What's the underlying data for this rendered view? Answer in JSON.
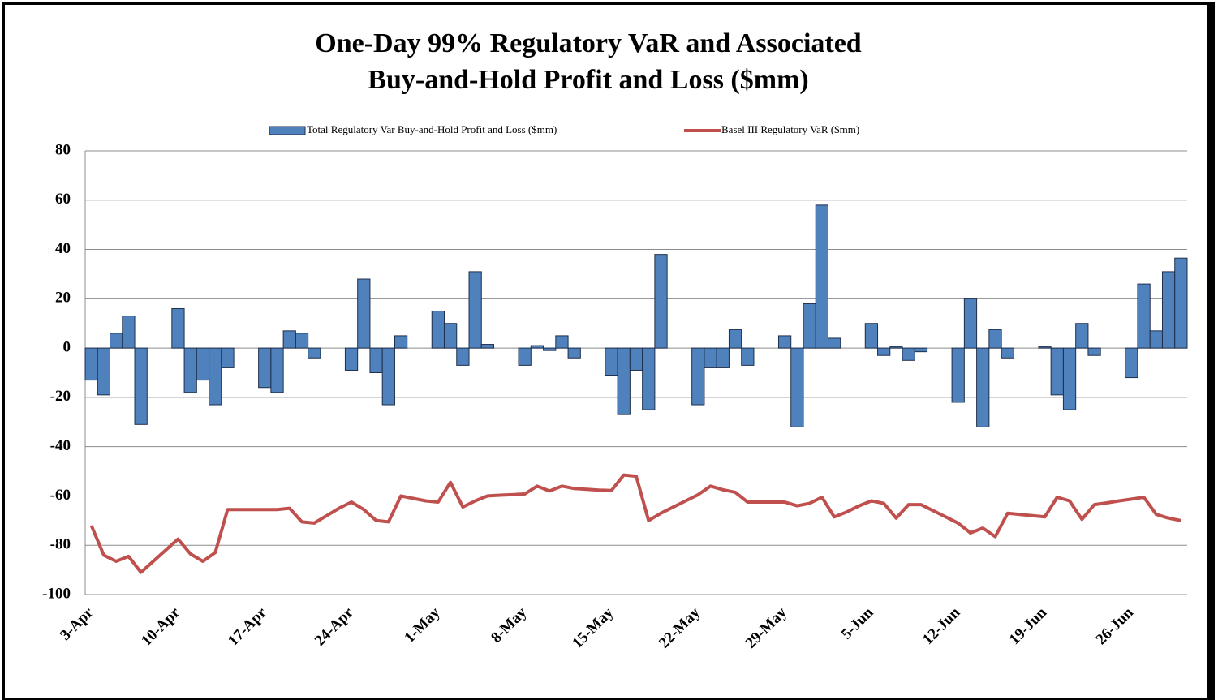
{
  "chart_data": {
    "type": "bar_line",
    "title": [
      "One-Day 99% Regulatory VaR and Associated",
      "Buy-and-Hold Profit and Loss ($mm)"
    ],
    "categories": [
      "3-Apr",
      null,
      null,
      null,
      null,
      null,
      null,
      "10-Apr",
      null,
      null,
      null,
      null,
      null,
      null,
      "17-Apr",
      null,
      null,
      null,
      null,
      null,
      null,
      "24-Apr",
      null,
      null,
      null,
      null,
      null,
      null,
      "1-May",
      null,
      null,
      null,
      null,
      null,
      null,
      "8-May",
      null,
      null,
      null,
      null,
      null,
      null,
      "15-May",
      null,
      null,
      null,
      null,
      null,
      null,
      "22-May",
      null,
      null,
      null,
      null,
      null,
      null,
      "29-May",
      null,
      null,
      null,
      null,
      null,
      null,
      "5-Jun",
      null,
      null,
      null,
      null,
      null,
      null,
      "12-Jun",
      null,
      null,
      null,
      null,
      null,
      null,
      "19-Jun",
      null,
      null,
      null,
      null,
      null,
      null,
      "26-Jun",
      null,
      null,
      null,
      null
    ],
    "series": [
      {
        "name": "Total Regulatory Var Buy-and-Hold Profit and Loss ($mm)",
        "type": "bar",
        "color": "#4f81bd",
        "values": [
          -13,
          -19,
          6,
          13,
          -31,
          null,
          null,
          16,
          -18,
          -13,
          -23,
          -8,
          null,
          null,
          -16,
          -18,
          7,
          6,
          -4,
          null,
          null,
          -9,
          28,
          -10,
          -23,
          5,
          null,
          null,
          15,
          10,
          -7,
          31,
          1.5,
          null,
          null,
          -7,
          1,
          -1,
          5,
          -4,
          null,
          null,
          -11,
          -27,
          -9,
          -25,
          38,
          null,
          null,
          -23,
          -8,
          -8,
          7.5,
          -7,
          null,
          null,
          5,
          -32,
          18,
          58,
          4,
          null,
          null,
          10,
          -3,
          0.5,
          -5,
          -1.5,
          null,
          null,
          -22,
          20,
          -32,
          7.5,
          -4,
          null,
          null,
          0.5,
          -19,
          -25,
          10,
          -3,
          null,
          null,
          -12,
          26,
          7,
          31,
          36.5
        ]
      },
      {
        "name": "Basel III Regulatory VaR ($mm)",
        "type": "line",
        "color": "#c0504d",
        "values": [
          -72,
          -84,
          -86.5,
          -84.5,
          -91,
          -86.5,
          -82,
          -77.5,
          -83.5,
          -86.5,
          -83,
          -65.5,
          -65.5,
          -65.5,
          -65.5,
          -65.5,
          -65,
          -70.5,
          -71,
          -68,
          -65,
          -62.5,
          -65.5,
          -70,
          -70.5,
          -60,
          -61,
          -62,
          -62.5,
          -54.5,
          -64.5,
          -62,
          -60,
          -59.7,
          -59.5,
          -59.2,
          -56,
          -58,
          -56,
          -57,
          -57.3,
          -57.6,
          -57.8,
          -51.5,
          -52,
          -70,
          -67,
          -64.5,
          -62,
          -59.5,
          -56,
          -57.5,
          -58.5,
          -62.5,
          -62.5,
          -62.5,
          -62.5,
          -64,
          -63,
          -60.5,
          -68.5,
          -66.5,
          -64,
          -62,
          -63,
          -69,
          -63.5,
          -63.5,
          -66,
          -68.5,
          -71,
          -75,
          -73,
          -76.5,
          -67,
          -67.5,
          -68,
          -68.5,
          -60.5,
          -62,
          -69.5,
          -63.5,
          -62.8,
          -62,
          -61.3,
          -60.5,
          -67.5,
          -69,
          -70
        ]
      }
    ],
    "ylim": [
      -100,
      80
    ],
    "yticks": [
      -100,
      -80,
      -60,
      -40,
      -20,
      0,
      20,
      40,
      60,
      80
    ],
    "grid": true
  }
}
